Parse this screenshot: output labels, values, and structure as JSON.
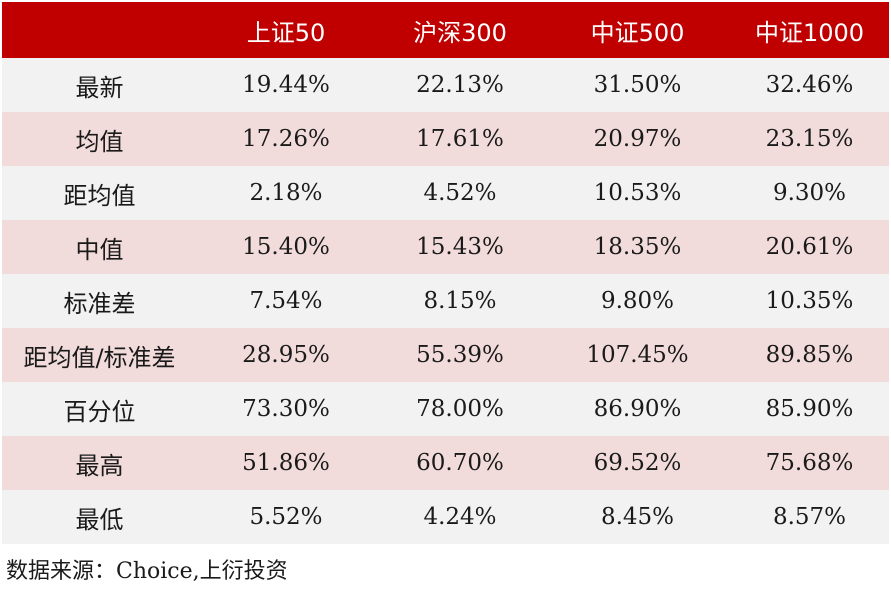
{
  "table": {
    "headers": [
      "",
      "上证50",
      "沪深300",
      "中证500",
      "中证1000"
    ],
    "rows": [
      {
        "label": "最新",
        "values": [
          "19.44%",
          "22.13%",
          "31.50%",
          "32.46%"
        ]
      },
      {
        "label": "均值",
        "values": [
          "17.26%",
          "17.61%",
          "20.97%",
          "23.15%"
        ]
      },
      {
        "label": "距均值",
        "values": [
          "2.18%",
          "4.52%",
          "10.53%",
          "9.30%"
        ]
      },
      {
        "label": "中值",
        "values": [
          "15.40%",
          "15.43%",
          "18.35%",
          "20.61%"
        ]
      },
      {
        "label": "标准差",
        "values": [
          "7.54%",
          "8.15%",
          "9.80%",
          "10.35%"
        ]
      },
      {
        "label": "距均值/标准差",
        "values": [
          "28.95%",
          "55.39%",
          "107.45%",
          "89.85%"
        ]
      },
      {
        "label": "百分位",
        "values": [
          "73.30%",
          "78.00%",
          "86.90%",
          "85.90%"
        ]
      },
      {
        "label": "最高",
        "values": [
          "51.86%",
          "60.70%",
          "69.52%",
          "75.68%"
        ]
      },
      {
        "label": "最低",
        "values": [
          "5.52%",
          "4.24%",
          "8.45%",
          "8.57%"
        ]
      }
    ]
  },
  "colors": {
    "header_bg": "#c00000",
    "row_odd_bg": "#f2f2f2",
    "row_even_bg": "#f2dcdb"
  },
  "source": "数据来源：Choice,上衍投资"
}
